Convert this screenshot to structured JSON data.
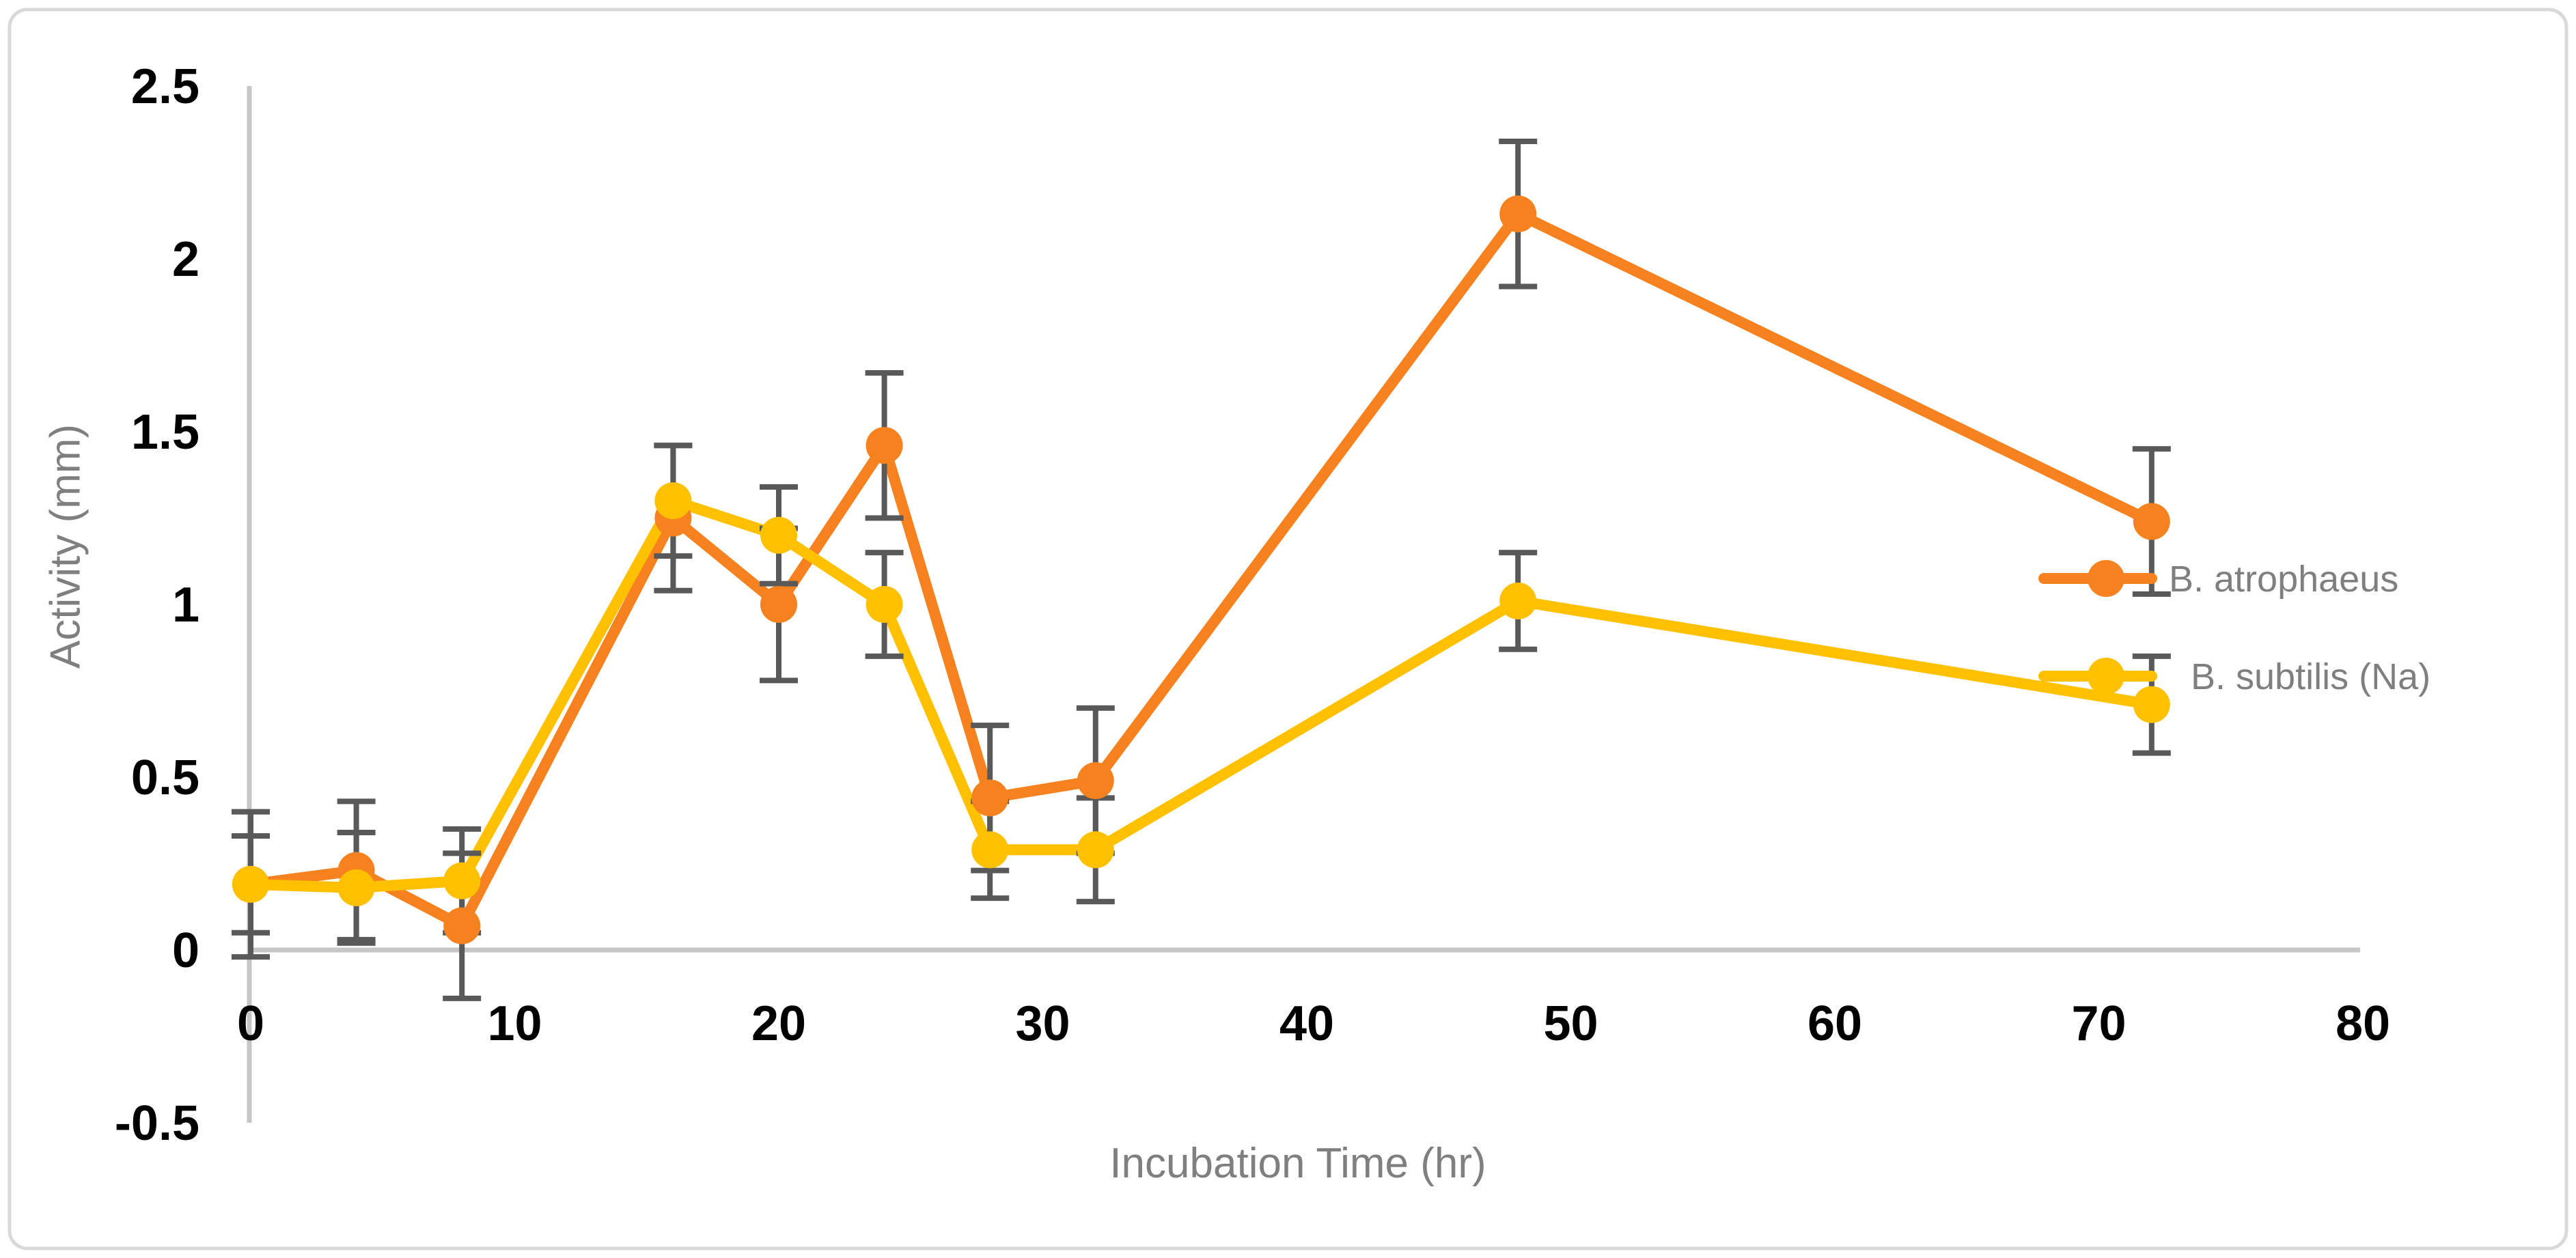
{
  "figure": {
    "background": "#ffffff",
    "border_color": "#d9d9d9"
  },
  "chart_data": {
    "type": "line",
    "title": "",
    "xlabel": "Incubation Time (hr)",
    "ylabel": "Activity (mm)",
    "xlim": [
      0,
      80
    ],
    "ylim": [
      -0.5,
      2.5
    ],
    "x_tick_labels": [
      "0",
      "10",
      "20",
      "30",
      "40",
      "50",
      "60",
      "70",
      "80"
    ],
    "x_tick_values": [
      0,
      10,
      20,
      30,
      40,
      50,
      60,
      70,
      80
    ],
    "y_tick_labels": [
      "-0.5",
      "0",
      "0.5",
      "1",
      "1.5",
      "2",
      "2.5"
    ],
    "y_tick_values": [
      -0.5,
      0,
      0.5,
      1,
      1.5,
      2,
      2.5
    ],
    "grid": false,
    "legend_position": "right-inside",
    "x": [
      0,
      4,
      8,
      16,
      20,
      24,
      28,
      32,
      48,
      72
    ],
    "series": [
      {
        "name": "B. atrophaeus",
        "color": "#f5821f",
        "values": [
          0.19,
          0.23,
          0.07,
          1.25,
          1.0,
          1.46,
          0.44,
          0.49,
          2.13,
          1.24
        ],
        "errors": [
          0.21,
          0.2,
          0.21,
          0.21,
          0.22,
          0.21,
          0.21,
          0.21,
          0.21,
          0.21
        ]
      },
      {
        "name": "B. subtilis (Na)",
        "color": "#ffc000",
        "values": [
          0.19,
          0.18,
          0.2,
          1.3,
          1.2,
          1.0,
          0.29,
          0.29,
          1.01,
          0.71
        ],
        "errors": [
          0.14,
          0.16,
          0.15,
          0.16,
          0.14,
          0.15,
          0.14,
          0.15,
          0.14,
          0.14
        ]
      }
    ],
    "error_bar_color": "#595959",
    "axis_color": "#c6c6c6",
    "tick_label_color": "#000000",
    "axis_title_color": "#7f7f7f",
    "legend_text_color": "#7f7f7f"
  }
}
